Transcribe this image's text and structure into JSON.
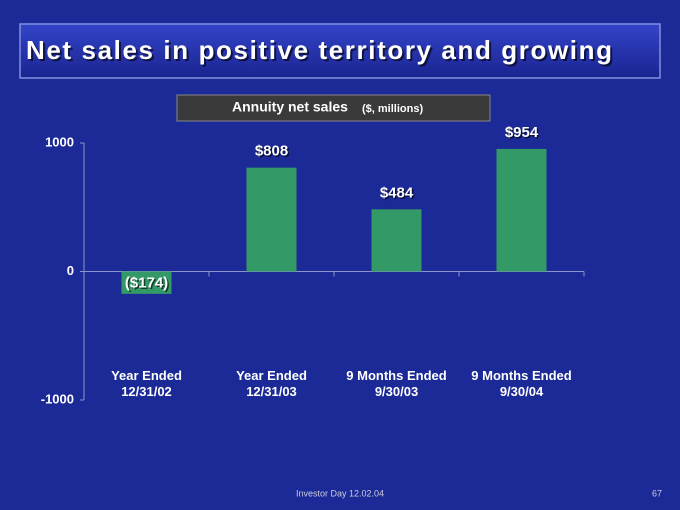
{
  "header": {
    "title": "Net sales in positive territory and growing"
  },
  "chart_data": {
    "type": "bar",
    "title": "Annuity net sales",
    "subtitle": "($, millions)",
    "categories": [
      "Year Ended 12/31/02",
      "Year Ended 12/31/03",
      "9 Months Ended 9/30/03",
      "9 Months Ended 9/30/04"
    ],
    "values": [
      -174,
      808,
      484,
      954
    ],
    "value_labels": [
      "($174)",
      "$808",
      "$484",
      "$954"
    ],
    "color": "#339966",
    "ylim": [
      -1000,
      1000
    ],
    "yticks": [
      -1000,
      0,
      1000
    ],
    "grid": false
  },
  "footer": {
    "text": "Investor Day 12.02.04",
    "page": "67"
  }
}
